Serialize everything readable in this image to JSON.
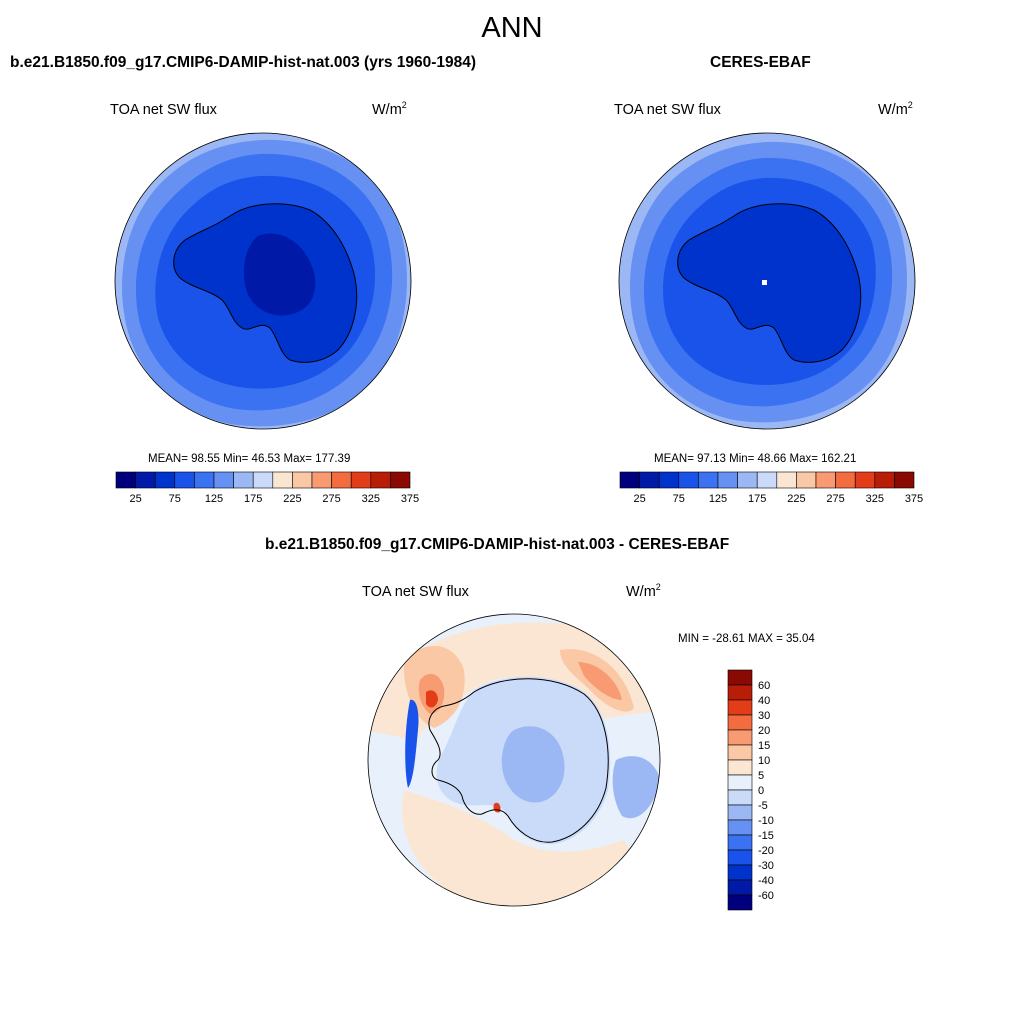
{
  "figure": {
    "season": "ANN"
  },
  "panels": [
    {
      "title": "b.e21.B1850.f09_g17.CMIP6-DAMIP-hist-nat.003 (yrs 1960-1984)",
      "variable": "TOA net SW flux",
      "units_base": "W/m",
      "units_exp": "2",
      "stats": "MEAN=  98.55  Min=  46.53  Max= 177.39"
    },
    {
      "title": "CERES-EBAF",
      "variable": "TOA net SW flux",
      "units_base": "W/m",
      "units_exp": "2",
      "stats": "MEAN=  97.13  Min=  48.66  Max= 162.21"
    },
    {
      "title": "b.e21.B1850.f09_g17.CMIP6-DAMIP-hist-nat.003 - CERES-EBAF",
      "variable": "TOA net SW flux",
      "units_base": "W/m",
      "units_exp": "2",
      "stats": "MIN = -28.61 MAX =  35.04"
    }
  ],
  "colorbars": {
    "field": {
      "orientation": "horizontal",
      "colors": [
        "#00007f",
        "#0019a6",
        "#0033cc",
        "#1a53ea",
        "#3a72f2",
        "#6691f2",
        "#9cb8f4",
        "#c9dbf8",
        "#fbe6d4",
        "#fbc8a6",
        "#f89b73",
        "#f26c3f",
        "#e23d18",
        "#b81d08",
        "#8a0a03"
      ],
      "tick_labels": [
        "25",
        "75",
        "125",
        "175",
        "225",
        "275",
        "325",
        "375"
      ]
    },
    "diff": {
      "orientation": "vertical",
      "colors": [
        "#8a0a03",
        "#b81d08",
        "#e23d18",
        "#f26c3f",
        "#f89b73",
        "#fbc8a6",
        "#fbe6d4",
        "#e8f0fb",
        "#c9dbf8",
        "#9cb8f4",
        "#6691f2",
        "#3a72f2",
        "#1a53ea",
        "#0033cc",
        "#0019a6",
        "#00007f"
      ],
      "tick_labels": [
        "60",
        "40",
        "30",
        "20",
        "15",
        "10",
        "5",
        "0",
        "-5",
        "-10",
        "-15",
        "-20",
        "-30",
        "-40",
        "-60"
      ]
    }
  },
  "map_colors": {
    "model": {
      "outer": "#9cb8f4",
      "ring2": "#6691f2",
      "ring3": "#3a72f2",
      "ring4": "#1a53ea",
      "continent": "#0033cc",
      "core": "#0019a6"
    },
    "obs": {
      "outer": "#9cb8f4",
      "ring2": "#6691f2",
      "ring3": "#3a72f2",
      "ring4": "#1a53ea",
      "continent": "#0033cc",
      "core": "#0033cc"
    },
    "diff": {
      "background": "#e8f0fb",
      "neg_light": "#c9dbf8",
      "neg_mid": "#9cb8f4",
      "pos_light": "#fbe6d4",
      "pos_mid": "#fbc8a6",
      "pos_strong": "#f89b73",
      "pos_max": "#e23d18",
      "neg_strong": "#1a53ea"
    }
  }
}
